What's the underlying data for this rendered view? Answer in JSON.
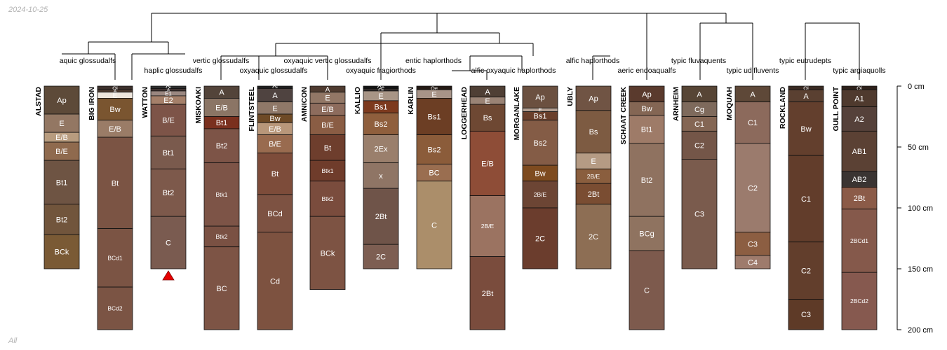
{
  "header": {
    "date": "2024-10-25"
  },
  "footer": {
    "note": "All"
  },
  "chart_data": {
    "type": "soil-profile-sketch",
    "title": "",
    "depth_axis": {
      "unit": "cm",
      "ylim": [
        0,
        200
      ],
      "ticks": [
        0,
        50,
        100,
        150,
        200
      ],
      "tick_labels": [
        "0 cm",
        "50 cm",
        "100 cm",
        "150 cm",
        "200 cm"
      ]
    },
    "groups": [
      {
        "name": "aquic glossudalfs",
        "members": [
          "ALSTAD"
        ]
      },
      {
        "name": "haplic glossudalfs",
        "members": [
          "BIG IRON",
          "WATTON"
        ]
      },
      {
        "name": "vertic glossudalfs",
        "members": [
          "MISKOAKI"
        ]
      },
      {
        "name": "oxyaquic glossudalfs",
        "members": [
          "FLINTSTEEL"
        ]
      },
      {
        "name": "oxyaquic vertic glossudalfs",
        "members": [
          "AMNICON"
        ]
      },
      {
        "name": "oxyaquic fragiorthods",
        "members": [
          "KALLIO"
        ]
      },
      {
        "name": "entic haplorthods",
        "members": [
          "KARLIN"
        ]
      },
      {
        "name": "alfic oxyaquic haplorthods",
        "members": [
          "LOGGERHEAD",
          "MORGANLAKE"
        ]
      },
      {
        "name": "alfic haplorthods",
        "members": [
          "UBLY"
        ]
      },
      {
        "name": "aeric endoaqualfs",
        "members": [
          "SCHAAT CREEK"
        ]
      },
      {
        "name": "typic fluvaquents",
        "members": [
          "ARNHEIM"
        ]
      },
      {
        "name": "typic udifluvents",
        "members": [
          "MOQUAH"
        ]
      },
      {
        "name": "typic eutrudepts",
        "members": [
          "ROCKLAND"
        ]
      },
      {
        "name": "typic argiaquolls",
        "members": [
          "GULL POINT"
        ]
      }
    ],
    "profiles": [
      {
        "name": "ALSTAD",
        "horizons": [
          {
            "name": "Ap",
            "top": 0,
            "bottom": 23,
            "color": "#5d4a39"
          },
          {
            "name": "E",
            "top": 23,
            "bottom": 38,
            "color": "#937763"
          },
          {
            "name": "E/B",
            "top": 38,
            "bottom": 46,
            "color": "#b89c7f"
          },
          {
            "name": "B/E",
            "top": 46,
            "bottom": 61,
            "color": "#8f6a4e"
          },
          {
            "name": "Bt1",
            "top": 61,
            "bottom": 97,
            "color": "#6e5443"
          },
          {
            "name": "Bt2",
            "top": 97,
            "bottom": 122,
            "color": "#71553c"
          },
          {
            "name": "BCk",
            "top": 122,
            "bottom": 150,
            "color": "#7a5a35"
          }
        ]
      },
      {
        "name": "BIG IRON",
        "horizons": [
          {
            "name": "Oi",
            "top": 0,
            "bottom": 3,
            "color": "#3c302b"
          },
          {
            "name": "A",
            "top": 3,
            "bottom": 5,
            "color": "#4e3b30"
          },
          {
            "name": "E",
            "top": 5,
            "bottom": 10,
            "color": "#eee6dd"
          },
          {
            "name": "Bw",
            "top": 10,
            "bottom": 28,
            "color": "#7a5530"
          },
          {
            "name": "E/B",
            "top": 28,
            "bottom": 42,
            "color": "#9a7c67"
          },
          {
            "name": "Bt",
            "top": 42,
            "bottom": 117,
            "color": "#7b5444"
          },
          {
            "name": "BCd1",
            "top": 117,
            "bottom": 165,
            "color": "#7b5444"
          },
          {
            "name": "BCd2",
            "top": 165,
            "bottom": 200,
            "color": "#7b5444"
          }
        ]
      },
      {
        "name": "WATTON",
        "bedrock": true,
        "horizons": [
          {
            "name": "Oi",
            "top": 0,
            "bottom": 2,
            "color": "#2f2f2f"
          },
          {
            "name": "A",
            "top": 2,
            "bottom": 4,
            "color": "#403230"
          },
          {
            "name": "E1",
            "top": 4,
            "bottom": 8,
            "color": "#9a8780"
          },
          {
            "name": "E2",
            "top": 8,
            "bottom": 15,
            "color": "#a5806a"
          },
          {
            "name": "B/E",
            "top": 15,
            "bottom": 41,
            "color": "#7d5448"
          },
          {
            "name": "Bt1",
            "top": 41,
            "bottom": 68,
            "color": "#7a5a4d"
          },
          {
            "name": "Bt2",
            "top": 68,
            "bottom": 107,
            "color": "#7d594b"
          },
          {
            "name": "C",
            "top": 107,
            "bottom": 150,
            "color": "#7a5b50"
          }
        ]
      },
      {
        "name": "MISKOAKI",
        "horizons": [
          {
            "name": "A",
            "top": 0,
            "bottom": 10,
            "color": "#53443a"
          },
          {
            "name": "E/B",
            "top": 10,
            "bottom": 25,
            "color": "#8b7565"
          },
          {
            "name": "Bt1",
            "top": 25,
            "bottom": 35,
            "color": "#7a301e"
          },
          {
            "name": "Bt2",
            "top": 35,
            "bottom": 63,
            "color": "#7d5447"
          },
          {
            "name": "Btk1",
            "top": 63,
            "bottom": 115,
            "color": "#7d5447"
          },
          {
            "name": "Btk2",
            "top": 115,
            "bottom": 132,
            "color": "#7a5143"
          },
          {
            "name": "BC",
            "top": 132,
            "bottom": 200,
            "color": "#7d5445"
          }
        ]
      },
      {
        "name": "FLINTSTEEL",
        "horizons": [
          {
            "name": "Oi",
            "top": 0,
            "bottom": 2,
            "color": "#1f1f1f"
          },
          {
            "name": "A",
            "top": 2,
            "bottom": 13,
            "color": "#4f4340"
          },
          {
            "name": "E",
            "top": 13,
            "bottom": 23,
            "color": "#8f7868"
          },
          {
            "name": "Bw",
            "top": 23,
            "bottom": 30,
            "color": "#6e4a26"
          },
          {
            "name": "E/B",
            "top": 30,
            "bottom": 40,
            "color": "#b8977a"
          },
          {
            "name": "B/E",
            "top": 40,
            "bottom": 55,
            "color": "#996b4f"
          },
          {
            "name": "Bt",
            "top": 55,
            "bottom": 89,
            "color": "#7d4c3a"
          },
          {
            "name": "BCd",
            "top": 89,
            "bottom": 120,
            "color": "#7d5242"
          },
          {
            "name": "Cd",
            "top": 120,
            "bottom": 200,
            "color": "#7d5240"
          }
        ]
      },
      {
        "name": "AMNICON",
        "horizons": [
          {
            "name": "A",
            "top": 0,
            "bottom": 5,
            "color": "#4f3b30"
          },
          {
            "name": "E",
            "top": 5,
            "bottom": 14,
            "color": "#927766"
          },
          {
            "name": "E/B",
            "top": 14,
            "bottom": 24,
            "color": "#8d6c5d"
          },
          {
            "name": "B/E",
            "top": 24,
            "bottom": 40,
            "color": "#8a5d44"
          },
          {
            "name": "Bt",
            "top": 40,
            "bottom": 61,
            "color": "#6e3e2d"
          },
          {
            "name": "Btk1",
            "top": 61,
            "bottom": 78,
            "color": "#6f3c2b"
          },
          {
            "name": "Btk2",
            "top": 78,
            "bottom": 107,
            "color": "#7a4c3d"
          },
          {
            "name": "BCk",
            "top": 107,
            "bottom": 167,
            "color": "#7d5343"
          }
        ]
      },
      {
        "name": "KALLIO",
        "horizons": [
          {
            "name": "Oe",
            "top": 0,
            "bottom": 2,
            "color": "#141414"
          },
          {
            "name": "Oi",
            "top": 2,
            "bottom": 4,
            "color": "#302a28"
          },
          {
            "name": "E",
            "top": 4,
            "bottom": 12,
            "color": "#a89586"
          },
          {
            "name": "Bs1",
            "top": 12,
            "bottom": 22,
            "color": "#7d3a1e"
          },
          {
            "name": "Bs2",
            "top": 22,
            "bottom": 40,
            "color": "#8f5f3d"
          },
          {
            "name": "2Ex",
            "top": 40,
            "bottom": 63,
            "color": "#9a7f6c"
          },
          {
            "name": "x",
            "top": 63,
            "bottom": 84,
            "color": "#8f7565"
          },
          {
            "name": "2Bt",
            "top": 84,
            "bottom": 130,
            "color": "#6f5449"
          },
          {
            "name": "2C",
            "top": 130,
            "bottom": 150,
            "color": "#7d5e52"
          }
        ]
      },
      {
        "name": "KARLIN",
        "horizons": [
          {
            "name": "Oe",
            "top": 0,
            "bottom": 3,
            "color": "#241a14"
          },
          {
            "name": "E",
            "top": 3,
            "bottom": 10,
            "color": "#a89488"
          },
          {
            "name": "Bs1",
            "top": 10,
            "bottom": 40,
            "color": "#6c3e24"
          },
          {
            "name": "Bs2",
            "top": 40,
            "bottom": 64,
            "color": "#8b5c3a"
          },
          {
            "name": "BC",
            "top": 64,
            "bottom": 78,
            "color": "#9a6e50"
          },
          {
            "name": "C",
            "top": 78,
            "bottom": 150,
            "color": "#ab8e6a"
          }
        ]
      },
      {
        "name": "LOGGERHEAD",
        "horizons": [
          {
            "name": "A",
            "top": 0,
            "bottom": 9,
            "color": "#4f3f35"
          },
          {
            "name": "E",
            "top": 9,
            "bottom": 15,
            "color": "#9a8375"
          },
          {
            "name": "Bs",
            "top": 15,
            "bottom": 37,
            "color": "#6e4833"
          },
          {
            "name": "E/B",
            "top": 37,
            "bottom": 90,
            "color": "#8e4d37"
          },
          {
            "name": "2B/E",
            "top": 90,
            "bottom": 140,
            "color": "#9b7361"
          },
          {
            "name": "2Bt",
            "top": 140,
            "bottom": 200,
            "color": "#7a4c3d"
          }
        ]
      },
      {
        "name": "MORGANLAKE",
        "horizons": [
          {
            "name": "Ap",
            "top": 0,
            "bottom": 18,
            "color": "#6b5040"
          },
          {
            "name": "E",
            "top": 18,
            "bottom": 21,
            "color": "#b49f92"
          },
          {
            "name": "Bs1",
            "top": 21,
            "bottom": 28,
            "color": "#6a3f2b"
          },
          {
            "name": "Bs2",
            "top": 28,
            "bottom": 65,
            "color": "#845c46"
          },
          {
            "name": "Bw",
            "top": 65,
            "bottom": 78,
            "color": "#7e4b1f"
          },
          {
            "name": "2B/E",
            "top": 78,
            "bottom": 100,
            "color": "#6c4534"
          },
          {
            "name": "2C",
            "top": 100,
            "bottom": 150,
            "color": "#6b3d2d"
          }
        ]
      },
      {
        "name": "UBLY",
        "horizons": [
          {
            "name": "Ap",
            "top": 0,
            "bottom": 20,
            "color": "#705444"
          },
          {
            "name": "Bs",
            "top": 20,
            "bottom": 55,
            "color": "#7d5b42"
          },
          {
            "name": "E",
            "top": 55,
            "bottom": 68,
            "color": "#b59b84"
          },
          {
            "name": "2B/E",
            "top": 68,
            "bottom": 80,
            "color": "#8a5e3e"
          },
          {
            "name": "2Bt",
            "top": 80,
            "bottom": 97,
            "color": "#7a4d32"
          },
          {
            "name": "2C",
            "top": 97,
            "bottom": 150,
            "color": "#8d6e54"
          }
        ]
      },
      {
        "name": "SCHAAT CREEK",
        "horizons": [
          {
            "name": "Ap",
            "top": 0,
            "bottom": 13,
            "color": "#5a3a2d"
          },
          {
            "name": "Bw",
            "top": 13,
            "bottom": 24,
            "color": "#846654"
          },
          {
            "name": "Bt1",
            "top": 24,
            "bottom": 47,
            "color": "#9e7b68"
          },
          {
            "name": "Bt2",
            "top": 47,
            "bottom": 107,
            "color": "#8f7260"
          },
          {
            "name": "BCg",
            "top": 107,
            "bottom": 135,
            "color": "#8f7360"
          },
          {
            "name": "C",
            "top": 135,
            "bottom": 200,
            "color": "#7d5a4d"
          }
        ]
      },
      {
        "name": "ARNHEIM",
        "horizons": [
          {
            "name": "A",
            "top": 0,
            "bottom": 13,
            "color": "#574535"
          },
          {
            "name": "Cg",
            "top": 13,
            "bottom": 25,
            "color": "#7e6a5c"
          },
          {
            "name": "C1",
            "top": 25,
            "bottom": 37,
            "color": "#846654"
          },
          {
            "name": "C2",
            "top": 37,
            "bottom": 60,
            "color": "#745648"
          },
          {
            "name": "C3",
            "top": 60,
            "bottom": 150,
            "color": "#7a5b4d"
          }
        ]
      },
      {
        "name": "MOQUAH",
        "horizons": [
          {
            "name": "A",
            "top": 0,
            "bottom": 13,
            "color": "#5e4838"
          },
          {
            "name": "C1",
            "top": 13,
            "bottom": 47,
            "color": "#8c6a5c"
          },
          {
            "name": "C2",
            "top": 47,
            "bottom": 120,
            "color": "#9b7b6d"
          },
          {
            "name": "C3",
            "top": 120,
            "bottom": 139,
            "color": "#8c5e42"
          },
          {
            "name": "C4",
            "top": 139,
            "bottom": 150,
            "color": "#9e7b6c"
          }
        ]
      },
      {
        "name": "ROCKLAND",
        "horizons": [
          {
            "name": "Oi",
            "top": 0,
            "bottom": 3,
            "color": "#3a2a23"
          },
          {
            "name": "A",
            "top": 3,
            "bottom": 13,
            "color": "#5a4031"
          },
          {
            "name": "Bw",
            "top": 13,
            "bottom": 57,
            "color": "#633f2d"
          },
          {
            "name": "C1",
            "top": 57,
            "bottom": 128,
            "color": "#623d2b"
          },
          {
            "name": "C2",
            "top": 128,
            "bottom": 175,
            "color": "#623e2c"
          },
          {
            "name": "C3",
            "top": 175,
            "bottom": 200,
            "color": "#5e3a27"
          }
        ]
      },
      {
        "name": "GULL POINT",
        "horizons": [
          {
            "name": "Oi",
            "top": 0,
            "bottom": 3,
            "color": "#2e211b"
          },
          {
            "name": "A1",
            "top": 3,
            "bottom": 17,
            "color": "#4f3a2e"
          },
          {
            "name": "A2",
            "top": 17,
            "bottom": 37,
            "color": "#55413a"
          },
          {
            "name": "AB1",
            "top": 37,
            "bottom": 70,
            "color": "#5b4134"
          },
          {
            "name": "AB2",
            "top": 70,
            "bottom": 83,
            "color": "#3a3432"
          },
          {
            "name": "2Bt",
            "top": 83,
            "bottom": 101,
            "color": "#8b5b48"
          },
          {
            "name": "2BCd1",
            "top": 101,
            "bottom": 153,
            "color": "#85594b"
          },
          {
            "name": "2BCd2",
            "top": 153,
            "bottom": 200,
            "color": "#86594f"
          }
        ]
      }
    ]
  }
}
